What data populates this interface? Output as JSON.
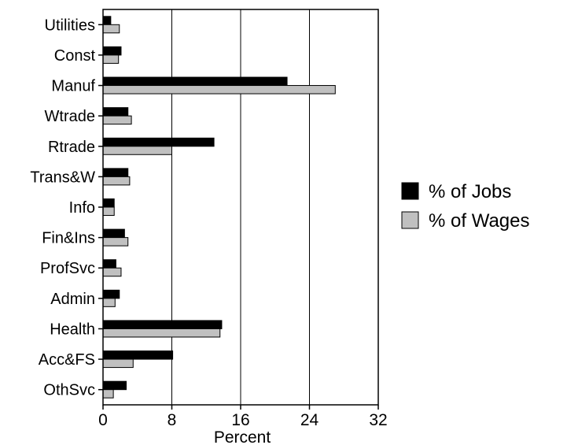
{
  "chart_data": {
    "type": "bar",
    "orientation": "horizontal",
    "categories": [
      "Utilities",
      "Const",
      "Manuf",
      "Wtrade",
      "Rtrade",
      "Trans&W",
      "Info",
      "Fin&Ins",
      "ProfSvc",
      "Admin",
      "Health",
      "Acc&FS",
      "OthSvc"
    ],
    "series": [
      {
        "name": "% of Jobs",
        "color": "#000000",
        "values": [
          0.9,
          2.1,
          21.4,
          2.9,
          12.9,
          2.9,
          1.3,
          2.5,
          1.5,
          1.9,
          13.8,
          8.1,
          2.7
        ]
      },
      {
        "name": "% of Wages",
        "color": "#c0c0c0",
        "values": [
          1.9,
          1.8,
          27.0,
          3.3,
          8.0,
          3.1,
          1.3,
          2.9,
          2.1,
          1.4,
          13.6,
          3.5,
          1.2
        ]
      }
    ],
    "xlabel": "Percent",
    "ylabel": "",
    "xlim": [
      0,
      32
    ],
    "xticks": [
      "0",
      "8",
      "16",
      "24",
      "32"
    ],
    "grid": "vertical",
    "legend_position": "right"
  }
}
